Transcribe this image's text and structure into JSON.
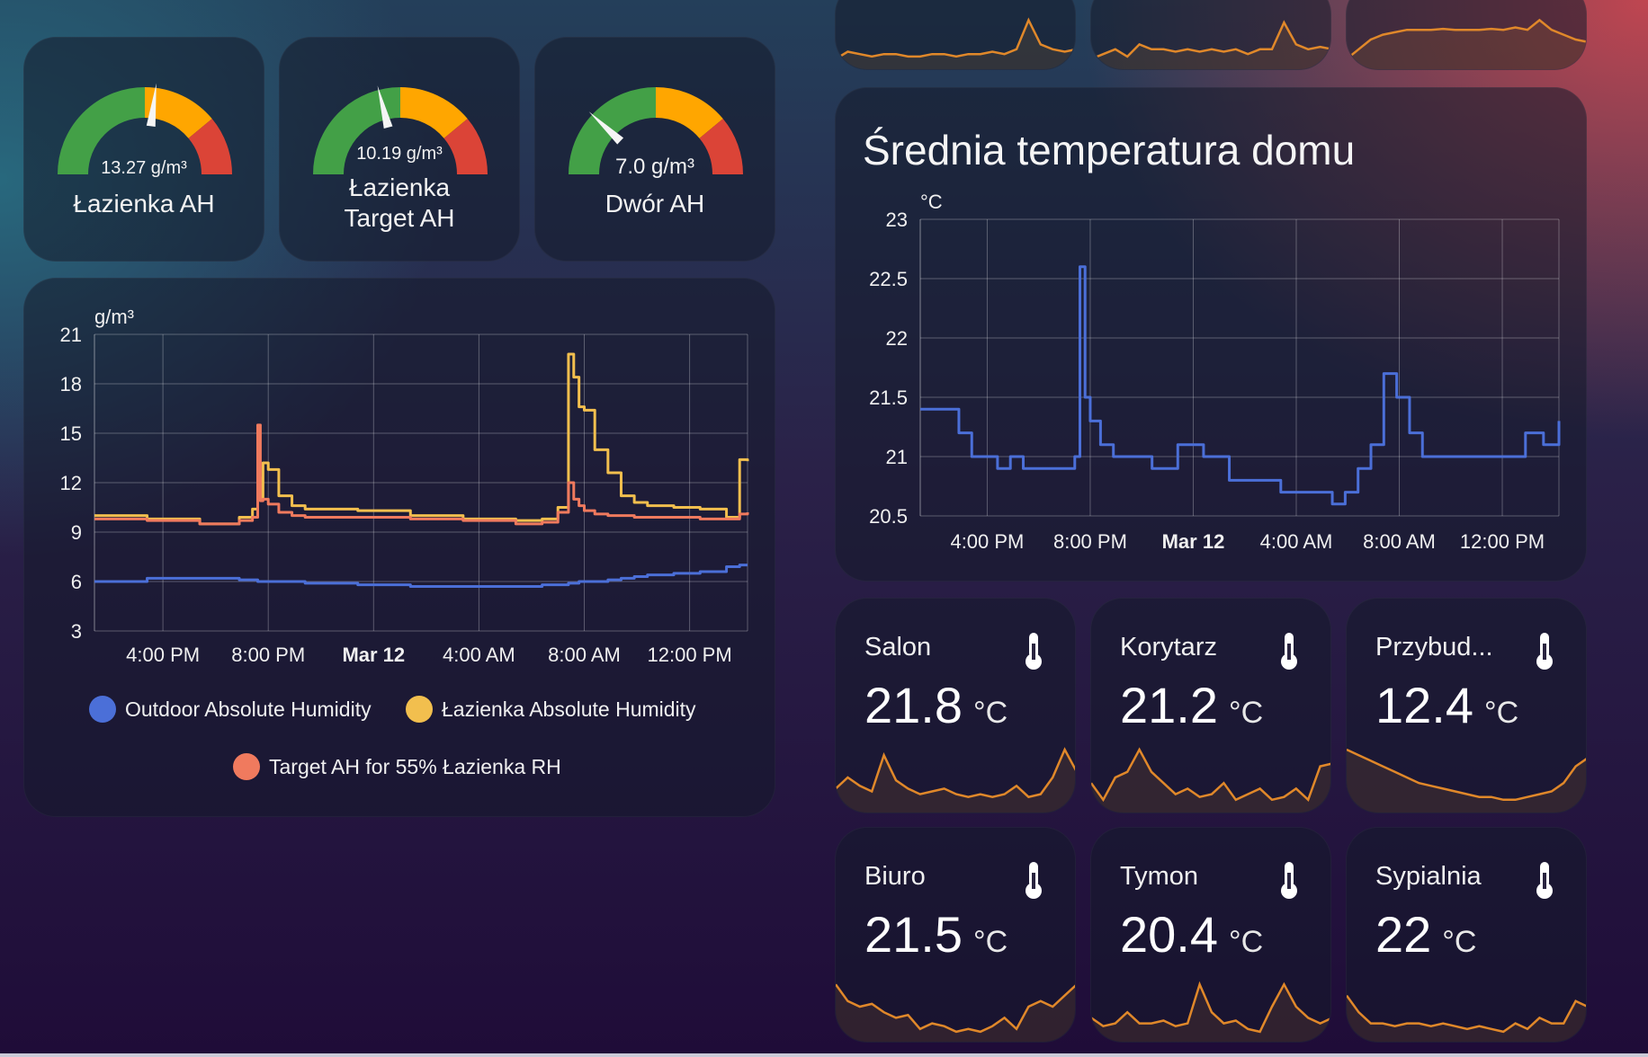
{
  "colors": {
    "outdoor": "#4b6fd8",
    "lazienka_ah": "#f2bf4e",
    "target_ah": "#f07a5e",
    "avg_temp": "#4b6fd8",
    "spark": "#e0882a",
    "gauge_green": "#43a047",
    "gauge_orange": "#ffa600",
    "gauge_red": "#db4437"
  },
  "gauges": [
    {
      "value_text": "13.27 g/m³",
      "label_lines": [
        "Łazienka AH"
      ],
      "needle_fraction": 0.54
    },
    {
      "value_text": "10.19 g/m³",
      "label_lines": [
        "Łazienka",
        "Target AH"
      ],
      "needle_fraction": 0.42
    },
    {
      "value_text": "7.0 g/m³",
      "label_lines": [
        "Dwór AH"
      ],
      "needle_fraction": 0.24
    }
  ],
  "humidity_chart": {
    "chart_data": {
      "type": "line",
      "unit_label": "g/m³",
      "ylim": [
        3,
        21
      ],
      "yticks": [
        "21",
        "18",
        "15",
        "12",
        "9",
        "6",
        "3"
      ],
      "x_tick_labels": [
        "4:00 PM",
        "8:00 PM",
        "Mar 12",
        "4:00 AM",
        "8:00 AM",
        "12:00 PM"
      ],
      "x_hours": [
        0,
        2,
        4,
        5.5,
        6,
        6.2,
        6.3,
        6.4,
        6.6,
        7,
        7.5,
        8,
        10,
        12,
        14,
        16,
        17,
        17.6,
        18,
        18.2,
        18.4,
        18.6,
        19,
        19.5,
        20,
        20.5,
        21,
        22,
        23,
        24,
        24.5,
        24.8
      ],
      "series": [
        {
          "name": "Outdoor Absolute Humidity",
          "values": [
            6.0,
            6.2,
            6.2,
            6.1,
            6.1,
            6.0,
            6.0,
            6.0,
            6.0,
            6.0,
            6.0,
            5.9,
            5.8,
            5.7,
            5.7,
            5.7,
            5.8,
            5.8,
            5.9,
            5.9,
            6.0,
            6.0,
            6.0,
            6.1,
            6.2,
            6.3,
            6.4,
            6.5,
            6.6,
            6.9,
            7.0,
            7.0
          ]
        },
        {
          "name": "Łazienka Absolute Humidity",
          "values": [
            10.0,
            9.8,
            9.5,
            9.9,
            10.4,
            12.3,
            11.0,
            13.2,
            12.8,
            11.2,
            10.6,
            10.4,
            10.3,
            10.0,
            9.8,
            9.7,
            9.8,
            10.5,
            19.8,
            18.4,
            16.6,
            16.4,
            14.0,
            12.6,
            11.2,
            10.8,
            10.6,
            10.5,
            10.4,
            9.9,
            13.4,
            13.3
          ]
        },
        {
          "name": "Target AH for 55% Łazienka RH",
          "values": [
            9.8,
            9.7,
            9.5,
            9.7,
            9.9,
            15.5,
            10.9,
            11.0,
            10.7,
            10.2,
            10.0,
            9.9,
            9.9,
            9.8,
            9.7,
            9.5,
            9.6,
            10.2,
            12.0,
            11.0,
            10.6,
            10.3,
            10.1,
            10.0,
            10.0,
            9.9,
            9.9,
            9.9,
            9.8,
            9.8,
            10.1,
            10.2
          ]
        }
      ]
    }
  },
  "avg_temp_card": {
    "title": "Średnia temperatura domu",
    "chart_data": {
      "type": "line",
      "unit_label": "°C",
      "ylim": [
        20.5,
        23
      ],
      "yticks": [
        "23",
        "22.5",
        "22",
        "21.5",
        "21",
        "20.5"
      ],
      "x_tick_labels": [
        "4:00 PM",
        "8:00 PM",
        "Mar 12",
        "4:00 AM",
        "8:00 AM",
        "12:00 PM"
      ],
      "x_hours": [
        0,
        1,
        1.5,
        2,
        3,
        3.5,
        4,
        5,
        6,
        6.2,
        6.4,
        6.6,
        7,
        7.5,
        8,
        9,
        10,
        11,
        12,
        13,
        14,
        15,
        16,
        16.5,
        17,
        17.5,
        18,
        18.5,
        19,
        19.5,
        20,
        21,
        22,
        23,
        23.5,
        24.2,
        24.8
      ],
      "series": [
        {
          "name": "",
          "values": [
            21.4,
            21.4,
            21.2,
            21.0,
            20.9,
            21.0,
            20.9,
            20.9,
            21.0,
            22.6,
            21.5,
            21.3,
            21.1,
            21.0,
            21.0,
            20.9,
            21.1,
            21.0,
            20.8,
            20.8,
            20.7,
            20.7,
            20.6,
            20.7,
            20.9,
            21.1,
            21.7,
            21.5,
            21.2,
            21.0,
            21.0,
            21.0,
            21.0,
            21.0,
            21.2,
            21.1,
            21.3
          ]
        }
      ]
    }
  },
  "tiles": [
    {
      "name": "Salon",
      "value": "21.8",
      "unit": "°C",
      "spark": [
        0.3,
        0.5,
        0.35,
        0.25,
        0.9,
        0.45,
        0.3,
        0.2,
        0.25,
        0.3,
        0.2,
        0.15,
        0.2,
        0.15,
        0.2,
        0.35,
        0.15,
        0.2,
        0.5,
        1.0,
        0.6
      ]
    },
    {
      "name": "Korytarz",
      "value": "21.2",
      "unit": "°C",
      "spark": [
        0.4,
        0.1,
        0.5,
        0.6,
        1.0,
        0.6,
        0.4,
        0.2,
        0.3,
        0.15,
        0.2,
        0.4,
        0.1,
        0.2,
        0.3,
        0.1,
        0.15,
        0.3,
        0.1,
        0.7,
        0.75
      ]
    },
    {
      "name": "Przybud...",
      "value": "12.4",
      "unit": "°C",
      "spark": [
        1.0,
        0.9,
        0.8,
        0.7,
        0.6,
        0.5,
        0.4,
        0.35,
        0.3,
        0.25,
        0.2,
        0.15,
        0.15,
        0.1,
        0.1,
        0.15,
        0.2,
        0.25,
        0.4,
        0.7,
        0.85
      ]
    },
    {
      "name": "Biuro",
      "value": "21.5",
      "unit": "°C",
      "spark": [
        0.9,
        0.6,
        0.5,
        0.55,
        0.4,
        0.3,
        0.35,
        0.1,
        0.2,
        0.15,
        0.05,
        0.1,
        0.05,
        0.15,
        0.3,
        0.1,
        0.5,
        0.6,
        0.5,
        0.7,
        0.9
      ]
    },
    {
      "name": "Tymon",
      "value": "20.4",
      "unit": "°C",
      "spark": [
        0.3,
        0.15,
        0.2,
        0.4,
        0.2,
        0.2,
        0.25,
        0.15,
        0.2,
        0.9,
        0.4,
        0.2,
        0.25,
        0.1,
        0.05,
        0.5,
        0.9,
        0.5,
        0.3,
        0.2,
        0.3
      ]
    },
    {
      "name": "Sypialnia",
      "value": "22",
      "unit": "°C",
      "spark": [
        0.7,
        0.4,
        0.2,
        0.2,
        0.15,
        0.2,
        0.2,
        0.15,
        0.2,
        0.15,
        0.1,
        0.15,
        0.1,
        0.05,
        0.2,
        0.1,
        0.3,
        0.2,
        0.2,
        0.6,
        0.5
      ]
    }
  ],
  "top_sparks": [
    [
      0.1,
      0.25,
      0.2,
      0.15,
      0.2,
      0.2,
      0.15,
      0.15,
      0.2,
      0.2,
      0.15,
      0.2,
      0.2,
      0.25,
      0.2,
      0.3,
      0.9,
      0.4,
      0.3,
      0.25,
      0.3
    ],
    [
      0.1,
      0.2,
      0.3,
      0.15,
      0.4,
      0.3,
      0.3,
      0.25,
      0.3,
      0.25,
      0.3,
      0.25,
      0.3,
      0.2,
      0.3,
      0.3,
      0.85,
      0.4,
      0.3,
      0.35,
      0.3
    ],
    [
      0.1,
      0.3,
      0.5,
      0.6,
      0.65,
      0.7,
      0.7,
      0.7,
      0.72,
      0.7,
      0.7,
      0.7,
      0.72,
      0.7,
      0.75,
      0.7,
      0.9,
      0.7,
      0.6,
      0.5,
      0.45
    ]
  ]
}
